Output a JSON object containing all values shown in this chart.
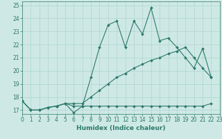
{
  "line1_x": [
    0,
    1,
    2,
    3,
    4,
    5,
    6,
    7,
    8,
    9,
    10,
    11,
    12,
    13,
    14,
    15,
    16,
    17,
    18,
    19,
    20,
    21,
    22
  ],
  "line1_y": [
    17.7,
    17.0,
    17.0,
    17.2,
    17.3,
    17.5,
    16.8,
    17.3,
    19.5,
    21.8,
    23.5,
    23.8,
    21.8,
    23.8,
    22.8,
    24.8,
    22.3,
    22.5,
    21.8,
    21.0,
    20.2,
    21.7,
    19.5
  ],
  "line2_x": [
    0,
    1,
    2,
    3,
    4,
    5,
    6,
    7,
    8,
    9,
    10,
    11,
    12,
    13,
    14,
    15,
    16,
    17,
    18,
    19,
    20,
    21,
    22
  ],
  "line2_y": [
    17.7,
    17.0,
    17.0,
    17.2,
    17.3,
    17.5,
    17.5,
    17.5,
    18.0,
    18.5,
    19.0,
    19.5,
    19.8,
    20.2,
    20.5,
    20.8,
    21.0,
    21.3,
    21.5,
    21.8,
    21.0,
    20.2,
    19.5
  ],
  "line3_x": [
    0,
    1,
    2,
    3,
    4,
    5,
    6,
    7,
    8,
    9,
    10,
    11,
    12,
    13,
    14,
    15,
    16,
    17,
    18,
    19,
    20,
    21,
    22
  ],
  "line3_y": [
    17.7,
    17.0,
    17.0,
    17.2,
    17.3,
    17.5,
    17.3,
    17.3,
    17.3,
    17.3,
    17.3,
    17.3,
    17.3,
    17.3,
    17.3,
    17.3,
    17.3,
    17.3,
    17.3,
    17.3,
    17.3,
    17.3,
    17.5
  ],
  "bg_color": "#cde8e5",
  "grid_color": "#b0d4d0",
  "line_color": "#2d7a6a",
  "marker": "D",
  "marker_size": 2.0,
  "line_width": 0.8,
  "xlim": [
    0,
    23
  ],
  "ylim": [
    16.7,
    25.3
  ],
  "yticks": [
    17,
    18,
    19,
    20,
    21,
    22,
    23,
    24,
    25
  ],
  "xticks": [
    0,
    1,
    2,
    3,
    4,
    5,
    6,
    7,
    8,
    9,
    10,
    11,
    12,
    13,
    14,
    15,
    16,
    17,
    18,
    19,
    20,
    21,
    22,
    23
  ],
  "xlabel": "Humidex (Indice chaleur)",
  "xlabel_fontsize": 6.5,
  "tick_fontsize": 5.5
}
